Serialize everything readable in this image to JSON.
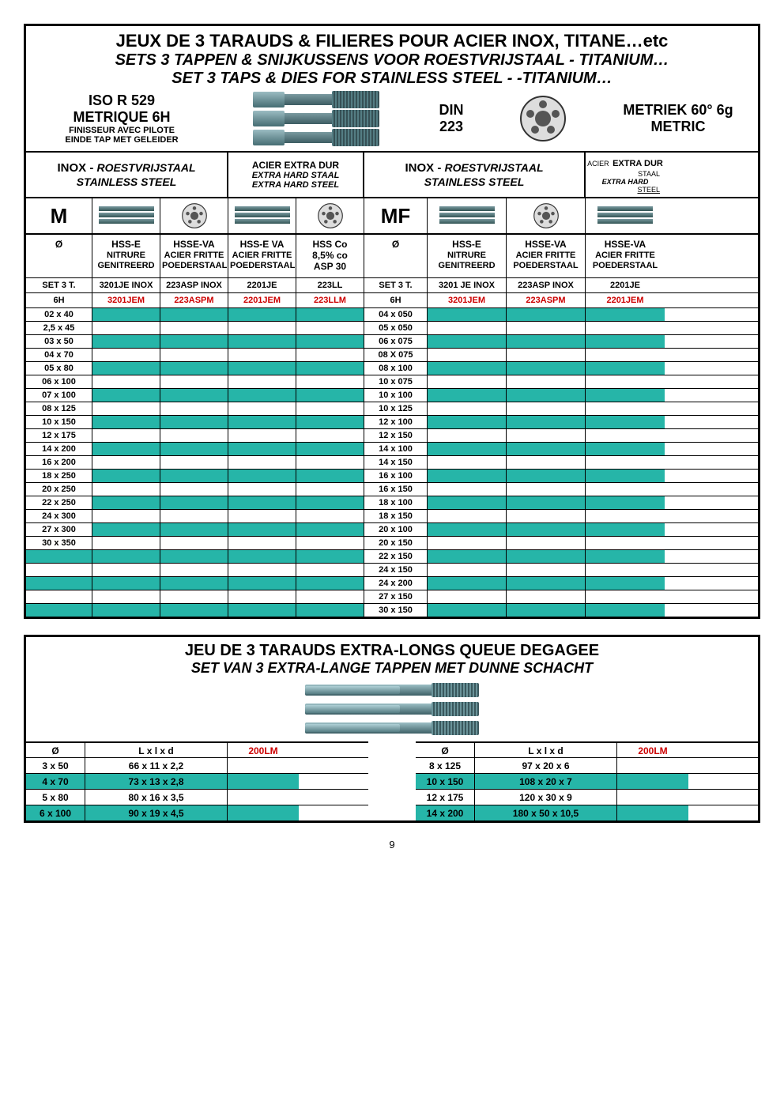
{
  "colors": {
    "teal": "#26b5a8",
    "red": "#cc0000",
    "border": "#000000"
  },
  "top": {
    "title_fr": "JEUX DE 3 TARAUDS & FILIERES  POUR ACIER INOX, TITANE…etc",
    "title_nl": "SETS  3 TAPPEN  &  SNIJKUSSENS VOOR ROESTVRIJSTAAL - TITANIUM…",
    "title_en": "SET 3 TAPS & DIES FOR STAINLESS STEEL - -TITANIUM…",
    "left_spec_l1": "ISO R 529",
    "left_spec_l2": "METRIQUE 6H",
    "left_spec_l3a": "FINISSEUR AVEC PILOTE",
    "left_spec_l3b": "EINDE TAP MET GELEIDER",
    "din_l1": "DIN",
    "din_l2": "223",
    "right_spec_l1": "METRIEK 60° 6g",
    "right_spec_l2": "METRIC",
    "group_headers": {
      "g1_l1": "INOX - ",
      "g1_l1b": "ROESTVRIJSTAAL",
      "g1_l2": "STAINLESS STEEL",
      "g2_l1": "ACIER EXTRA DUR",
      "g2_l2": "EXTRA HARD  STAAL",
      "g2_l3": "EXTRA HARD STEEL",
      "g3_l1": "INOX - ",
      "g3_l1b": "ROESTVRIJSTAAL",
      "g3_l2": "STAINLESS STEEL",
      "g4_l0": "ACIER",
      "g4_l1": "EXTRA DUR",
      "g4_l2": "STAAL",
      "g4_l3": "EXTRA HARD",
      "g4_l4": "STEEL"
    },
    "icon_labels": {
      "M": "M",
      "MF": "MF"
    },
    "spec3": {
      "c1": "Ø",
      "c2a": "HSS-E",
      "c2b": "NITRURE",
      "c2c": "GENITREERD",
      "c3a": "HSSE-VA",
      "c3b": "ACIER FRITTE",
      "c3c": "POEDERSTAAL",
      "c4a": "HSS-E VA",
      "c4b": "ACIER FRITTE",
      "c4c": "POEDERSTAAL",
      "c5a": "HSS Co",
      "c5b": "8,5% co",
      "c5c": "ASP 30",
      "c6": "Ø",
      "c7a": "HSS-E",
      "c7b": "NITRURE",
      "c7c": "GENITREERD",
      "c8a": "HSSE-VA",
      "c8b": "ACIER FRITTE",
      "c8c": "POEDERSTAAL",
      "c9a": "HSSE-VA",
      "c9b": "ACIER FRITTE",
      "c9c": "POEDERSTAAL"
    },
    "codes_row1": [
      "SET 3 T.",
      "3201JE INOX",
      "223ASP INOX",
      "2201JE",
      "223LL",
      "SET 3 T.",
      "3201 JE INOX",
      "223ASP INOX",
      "2201JE"
    ],
    "codes_row2": [
      "6H",
      "3201JEM",
      "223ASPM",
      "2201JEM",
      "223LLM",
      "6H",
      "3201JEM",
      "223ASPM",
      "2201JEM"
    ],
    "codes_row2_red_cols": [
      1,
      2,
      3,
      4,
      6,
      7,
      8
    ],
    "left_sizes": [
      "02 x 40",
      "2,5 x 45",
      "03 x 50",
      "04 x 70",
      "05 x 80",
      "06 x 100",
      "07 x 100",
      "08 x 125",
      "10 x 150",
      "12 x 175",
      "14 x 200",
      "16 x 200",
      "18 x 250",
      "20 x 250",
      "22 x 250",
      "24 x 300",
      "27 x 300",
      "30 x 350",
      "",
      "",
      "",
      "",
      ""
    ],
    "right_sizes": [
      "04 x 050",
      "05 x 050",
      "06 x 075",
      "08 X 075",
      "08 x 100",
      "10 x 075",
      "10 x 100",
      "10 x 125",
      "12 x 100",
      "12 x 150",
      "14 x 100",
      "14 x 150",
      "16 x 100",
      "16 x 150",
      "18 x 100",
      "18 x 150",
      "20 x 100",
      "20 x 150",
      "22 x 150",
      "24 x 150",
      "24 x 200",
      "27 x 150",
      "30 x 150"
    ],
    "teal_rows": [
      0,
      2,
      4,
      6,
      8,
      10,
      12,
      14,
      16,
      18,
      20,
      22
    ]
  },
  "bottom": {
    "title_fr": "JEU DE 3 TARAUDS EXTRA-LONGS QUEUE DEGAGEE",
    "title_nl": "SET VAN 3 EXTRA-LANGE TAPPEN MET DUNNE SCHACHT",
    "hdr": {
      "d": "Ø",
      "dims": "L x l x d",
      "code": "200LM"
    },
    "left": [
      {
        "d": "3 x 50",
        "dims": "66 x 11 x 2,2"
      },
      {
        "d": "4 x 70",
        "dims": "73 x 13 x 2,8"
      },
      {
        "d": "5 x 80",
        "dims": "80 x 16 x 3,5"
      },
      {
        "d": "6 x 100",
        "dims": "90 x 19 x 4,5"
      }
    ],
    "right": [
      {
        "d": "8 x 125",
        "dims": "97 x 20 x 6"
      },
      {
        "d": "10 x 150",
        "dims": "108 x 20 x 7"
      },
      {
        "d": "12 x 175",
        "dims": "120 x 30 x 9"
      },
      {
        "d": "14 x 200",
        "dims": "180 x 50 x 10,5"
      }
    ],
    "teal_rows": [
      1,
      3
    ]
  },
  "page_number": "9"
}
